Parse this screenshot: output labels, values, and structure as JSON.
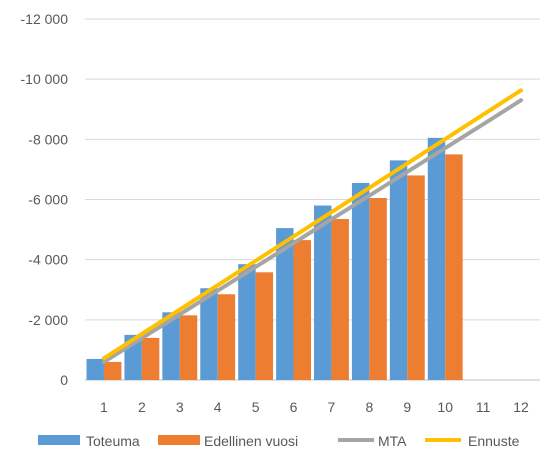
{
  "chart_data": {
    "type": "bar",
    "categories": [
      "1",
      "2",
      "3",
      "4",
      "5",
      "6",
      "7",
      "8",
      "9",
      "10",
      "11",
      "12"
    ],
    "ylim": [
      0,
      -12000
    ],
    "yticks": [
      0,
      -2000,
      -4000,
      -6000,
      -8000,
      -10000,
      -12000
    ],
    "ytick_labels": [
      "0",
      "-2 000",
      "-4 000",
      "-6 000",
      "-8 000",
      "-10 000",
      "-12 000"
    ],
    "grid": true,
    "legend_position": "bottom",
    "title": "",
    "xlabel": "",
    "ylabel": "",
    "series": [
      {
        "name": "Toteuma",
        "kind": "bar",
        "color": "#5B9BD5",
        "values": [
          -700,
          -1500,
          -2250,
          -3050,
          -3850,
          -5050,
          -5800,
          -6550,
          -7300,
          -8050,
          null,
          null
        ]
      },
      {
        "name": "Edellinen vuosi",
        "kind": "bar",
        "color": "#ED7D31",
        "values": [
          -600,
          -1400,
          -2150,
          -2850,
          -3580,
          -4650,
          -5350,
          -6050,
          -6800,
          -7500,
          null,
          null
        ]
      },
      {
        "name": "MTA",
        "kind": "line",
        "color": "#A5A5A5",
        "values": [
          -600,
          -1390,
          -2180,
          -2970,
          -3760,
          -4550,
          -5340,
          -6130,
          -6920,
          -7710,
          -8500,
          -9300
        ]
      },
      {
        "name": "Ennuste",
        "kind": "line",
        "color": "#FFC000",
        "values": [
          -720,
          -1530,
          -2340,
          -3150,
          -3960,
          -4770,
          -5580,
          -6390,
          -7200,
          -8010,
          -8820,
          -9630
        ]
      }
    ]
  }
}
